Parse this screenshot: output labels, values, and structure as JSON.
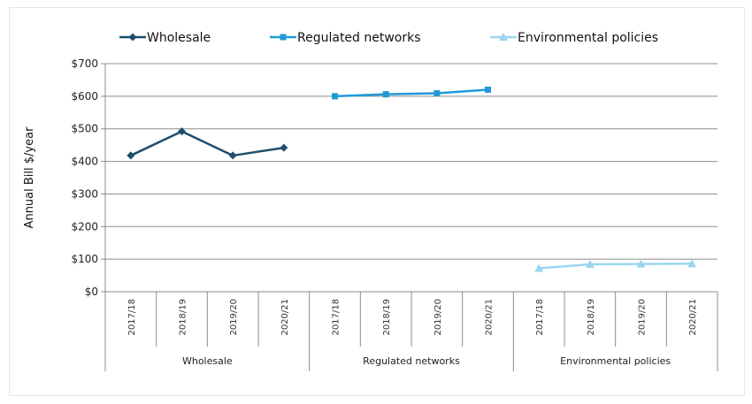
{
  "chart_data": {
    "type": "line",
    "title": "",
    "ylabel": "Annual Bill  $/year",
    "ylim": [
      0,
      700
    ],
    "y_ticks": [
      "$0",
      "$100",
      "$200",
      "$300",
      "$400",
      "$500",
      "$600",
      "$700"
    ],
    "grid": true,
    "legend_position": "top",
    "categories": [
      "2017/18",
      "2018/19",
      "2019/20",
      "2020/21"
    ],
    "groups": [
      "Wholesale",
      "Regulated networks",
      "Environmental policies"
    ],
    "series": [
      {
        "name": "Wholesale",
        "color": "#1d4f6b",
        "marker": "diamond",
        "values": [
          418,
          492,
          418,
          442
        ]
      },
      {
        "name": "Regulated networks",
        "color": "#1f9ad6",
        "marker": "square",
        "values": [
          600,
          606,
          609,
          620
        ]
      },
      {
        "name": "Environmental policies",
        "color": "#9ad6ef",
        "marker": "triangle",
        "values": [
          72,
          84,
          85,
          86
        ]
      }
    ]
  }
}
